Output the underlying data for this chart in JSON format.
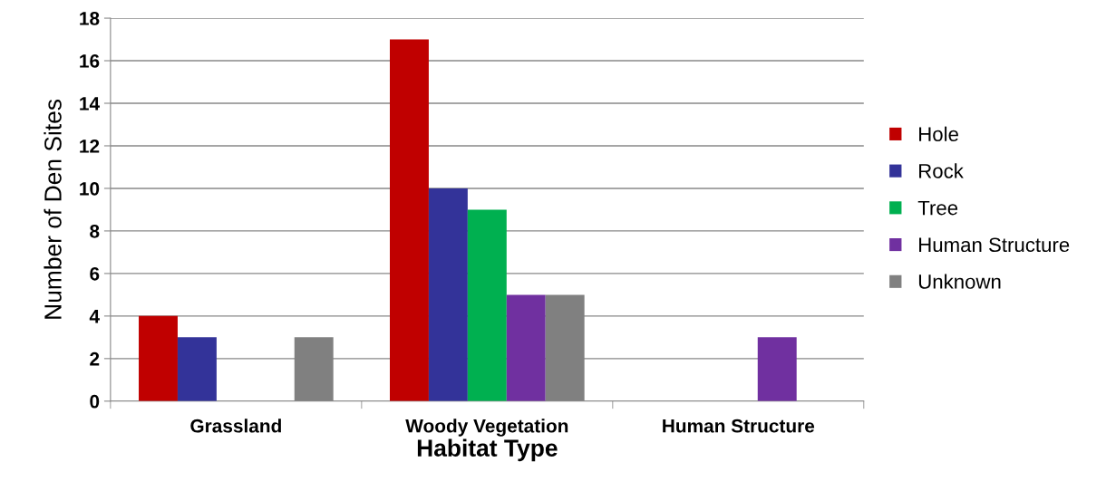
{
  "chart_data": {
    "type": "bar",
    "xlabel": "Habitat Type",
    "ylabel": "Number of Den Sites",
    "categories": [
      "Grassland",
      "Woody Vegetation",
      "Human Structure"
    ],
    "series": [
      {
        "name": "Hole",
        "color": "#c00000",
        "values": [
          4,
          17,
          0
        ]
      },
      {
        "name": "Rock",
        "color": "#333399",
        "values": [
          3,
          10,
          0
        ]
      },
      {
        "name": "Tree",
        "color": "#00b050",
        "values": [
          0,
          9,
          0
        ]
      },
      {
        "name": "Human Structure",
        "color": "#7030a0",
        "values": [
          0,
          5,
          3
        ]
      },
      {
        "name": "Unknown",
        "color": "#808080",
        "values": [
          3,
          5,
          0
        ]
      }
    ],
    "ylim": [
      0,
      18
    ],
    "yticks": [
      0,
      2,
      4,
      6,
      8,
      10,
      12,
      14,
      16,
      18
    ],
    "grid": "y",
    "legend": "right"
  }
}
